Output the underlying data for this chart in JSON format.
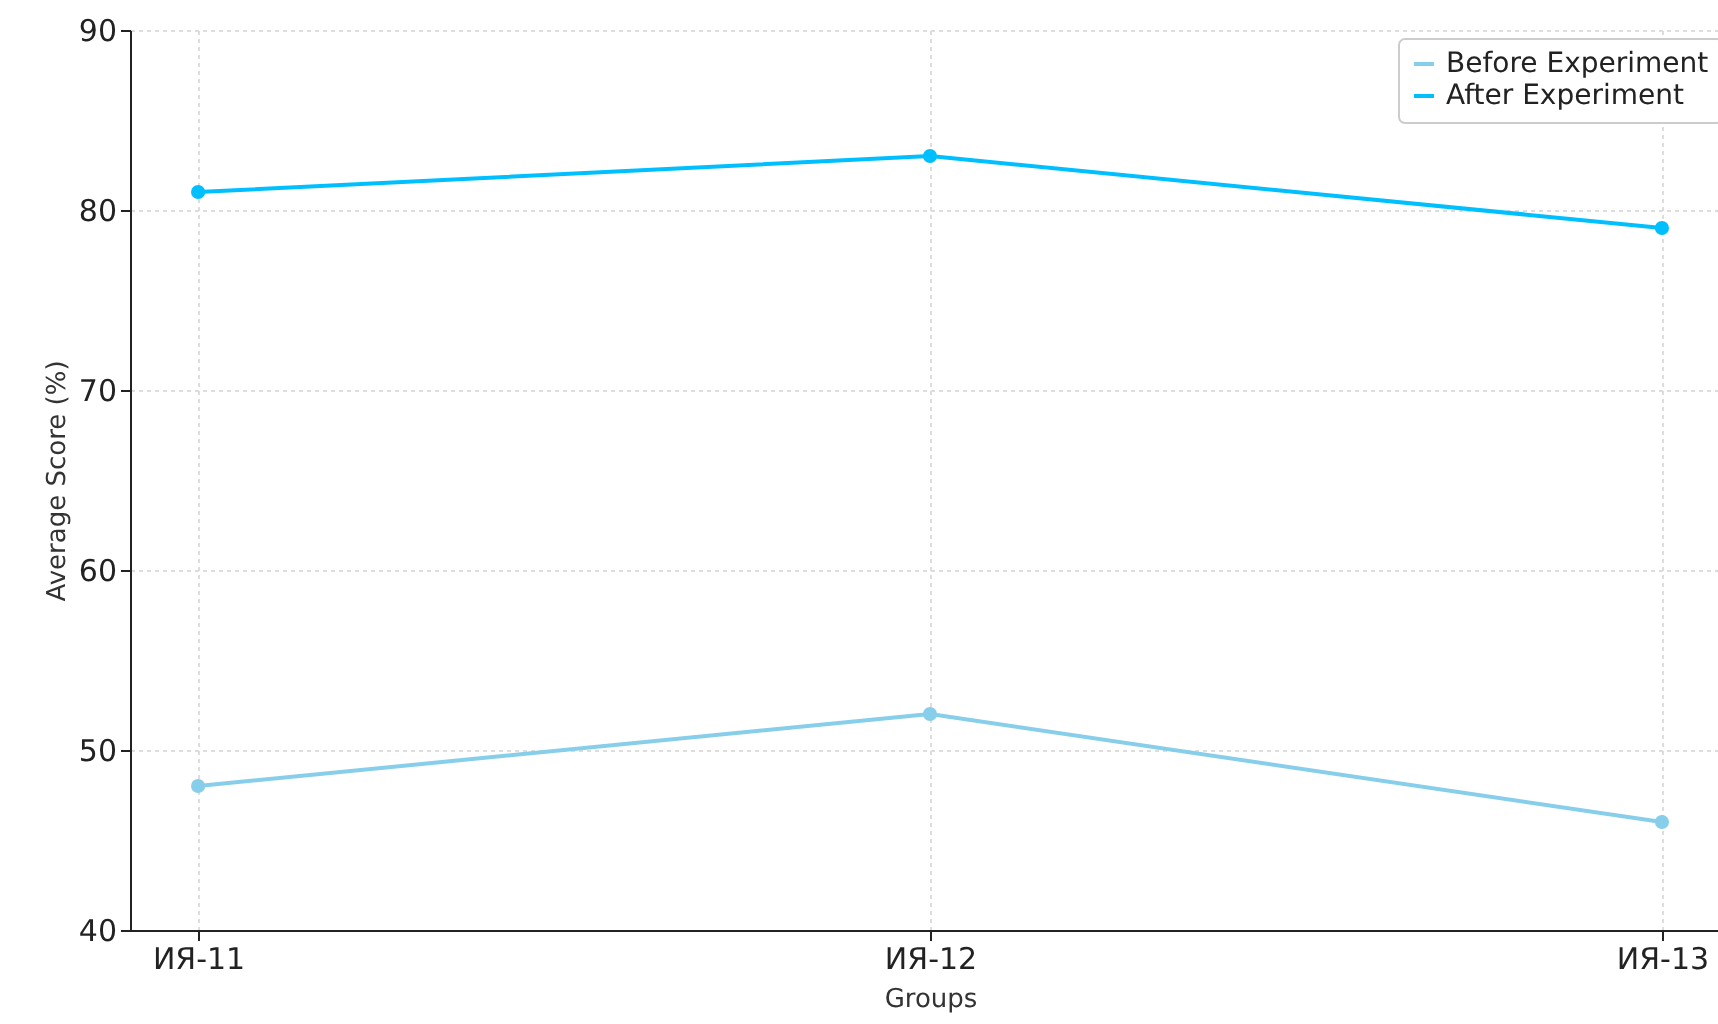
{
  "chart_data": {
    "type": "line",
    "xlabel": "Groups",
    "ylabel": "Average Score (%)",
    "categories": [
      "ИЯ-11",
      "ИЯ-12",
      "ИЯ-13"
    ],
    "series": [
      {
        "name": "Before Experiment",
        "color": "#87ceeb",
        "values": [
          48,
          52,
          46
        ]
      },
      {
        "name": "After Experiment",
        "color": "#00bfff",
        "values": [
          81,
          83,
          79
        ]
      }
    ],
    "ylim": [
      40,
      90
    ],
    "yticks": [
      40,
      50,
      60,
      70,
      80,
      90
    ],
    "grid": true,
    "legend": "top right",
    "marker": "circle"
  }
}
